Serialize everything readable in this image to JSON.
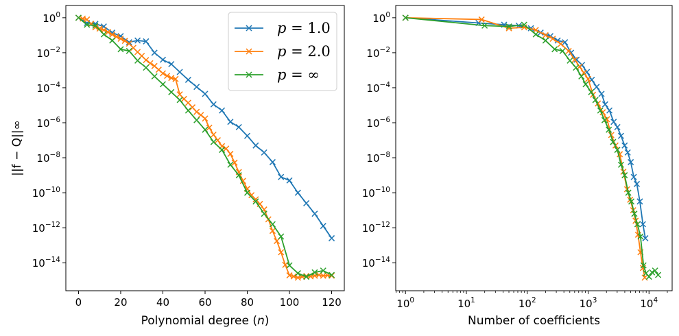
{
  "chart_data": [
    {
      "type": "line",
      "name": "left",
      "xlabel": "Polynomial degree (n)",
      "xlabel_pre": "Polynomial degree (",
      "xlabel_var": "n",
      "xlabel_post": ")",
      "ylabel": "||f − Q||∞",
      "xscale": "linear",
      "yscale": "log",
      "xlim": [
        -6,
        126
      ],
      "ylim_exp": [
        -15.6,
        0.7
      ],
      "xticks": [
        0,
        20,
        40,
        60,
        80,
        100,
        120
      ],
      "xtick_labels": [
        "0",
        "20",
        "40",
        "60",
        "80",
        "100",
        "120"
      ],
      "ytick_exps": [
        0,
        -2,
        -4,
        -6,
        -8,
        -10,
        -12,
        -14
      ],
      "ytick_labels": [
        "0",
        "−2",
        "−4",
        "−6",
        "−8",
        "−10",
        "−12",
        "−14"
      ],
      "ytick_base": "10",
      "legend": {
        "placement": "top-right",
        "entries": [
          {
            "prefix": "p = ",
            "value": "1.0"
          },
          {
            "prefix": "p = ",
            "value": "2.0"
          },
          {
            "prefix": "p = ",
            "value": "∞"
          }
        ]
      },
      "series": [
        {
          "name": "p = 1.0",
          "color": "#1f77b4",
          "x": [
            0,
            4,
            8,
            12,
            16,
            20,
            24,
            28,
            32,
            36,
            40,
            44,
            48,
            52,
            56,
            60,
            64,
            68,
            72,
            76,
            80,
            84,
            88,
            92,
            96,
            100,
            104,
            108,
            112,
            116,
            120
          ],
          "logy": [
            0,
            -0.3,
            -0.35,
            -0.5,
            -0.85,
            -1.05,
            -1.4,
            -1.3,
            -1.35,
            -2.0,
            -2.4,
            -2.65,
            -3.1,
            -3.55,
            -3.95,
            -4.35,
            -4.95,
            -5.3,
            -5.95,
            -6.25,
            -6.75,
            -7.3,
            -7.7,
            -8.25,
            -9.1,
            -9.3,
            -10.0,
            -10.6,
            -11.2,
            -11.9,
            -12.6
          ]
        },
        {
          "name": "p = 2.0",
          "color": "#ff7f0e",
          "x": [
            0,
            2,
            4,
            6,
            8,
            10,
            12,
            14,
            16,
            18,
            20,
            22,
            24,
            26,
            28,
            30,
            32,
            34,
            36,
            38,
            40,
            42,
            44,
            46,
            48,
            50,
            52,
            54,
            56,
            58,
            60,
            62,
            64,
            66,
            68,
            70,
            72,
            74,
            76,
            78,
            80,
            82,
            84,
            86,
            88,
            90,
            92,
            94,
            96,
            98,
            100,
            102,
            104,
            106,
            108,
            110,
            112,
            114,
            116,
            118,
            120
          ],
          "logy": [
            0,
            -0.05,
            -0.1,
            -0.35,
            -0.55,
            -0.62,
            -0.7,
            -0.82,
            -0.96,
            -1.08,
            -1.2,
            -1.32,
            -1.48,
            -1.72,
            -1.96,
            -2.18,
            -2.42,
            -2.6,
            -2.76,
            -2.97,
            -3.18,
            -3.32,
            -3.44,
            -3.5,
            -4.38,
            -4.64,
            -4.86,
            -5.12,
            -5.38,
            -5.56,
            -5.76,
            -6.28,
            -6.68,
            -7.0,
            -7.34,
            -7.48,
            -7.78,
            -8.28,
            -8.82,
            -9.32,
            -9.78,
            -10.14,
            -10.38,
            -10.64,
            -10.96,
            -11.52,
            -12.18,
            -12.76,
            -13.4,
            -14.12,
            -14.72,
            -14.78,
            -14.85,
            -14.8,
            -14.76,
            -14.78,
            -14.74,
            -14.7,
            -14.74,
            -14.72,
            -14.74
          ]
        },
        {
          "name": "p = ∞",
          "color": "#2ca02c",
          "x": [
            0,
            4,
            8,
            12,
            16,
            20,
            24,
            28,
            32,
            36,
            40,
            44,
            48,
            52,
            56,
            60,
            64,
            68,
            72,
            76,
            80,
            84,
            88,
            92,
            96,
            100,
            104,
            108,
            112,
            116,
            120
          ],
          "logy": [
            0,
            -0.4,
            -0.45,
            -0.95,
            -1.3,
            -1.8,
            -1.9,
            -2.45,
            -2.85,
            -3.35,
            -3.8,
            -4.25,
            -4.7,
            -5.3,
            -5.85,
            -6.4,
            -7.1,
            -7.55,
            -8.4,
            -9.0,
            -10.0,
            -10.5,
            -11.2,
            -11.8,
            -12.5,
            -14.15,
            -14.6,
            -14.8,
            -14.55,
            -14.45,
            -14.7
          ]
        }
      ]
    },
    {
      "type": "line",
      "name": "right",
      "xlabel": "Number of coefficients",
      "ylabel": "",
      "xscale": "log",
      "yscale": "log",
      "xlim_exp": [
        -0.16,
        4.38
      ],
      "ylim_exp": [
        -15.6,
        0.7
      ],
      "xtick_exps": [
        0,
        1,
        2,
        3,
        4
      ],
      "xtick_labels": [
        "0",
        "1",
        "2",
        "3",
        "4"
      ],
      "xtick_base": "10",
      "ytick_exps": [
        0,
        -2,
        -4,
        -6,
        -8,
        -10,
        -12,
        -14
      ],
      "ytick_labels": [
        "0",
        "−2",
        "−4",
        "−6",
        "−8",
        "−10",
        "−12",
        "−14"
      ],
      "ytick_base": "10",
      "series": [
        {
          "name": "p = 1.0",
          "color": "#1f77b4",
          "logx": [
            0,
            1.2,
            1.62,
            1.86,
            2.06,
            2.22,
            2.38,
            2.5,
            2.62,
            2.72,
            2.81,
            2.9,
            2.98,
            3.06,
            3.14,
            3.22,
            3.28,
            3.35,
            3.42,
            3.48,
            3.54,
            3.6,
            3.65,
            3.7,
            3.75,
            3.8,
            3.85,
            3.9,
            3.94
          ],
          "logy": [
            0,
            -0.3,
            -0.4,
            -0.45,
            -0.6,
            -0.85,
            -1.05,
            -1.3,
            -1.4,
            -2.0,
            -2.4,
            -2.7,
            -3.1,
            -3.55,
            -3.95,
            -4.35,
            -4.95,
            -5.3,
            -5.95,
            -6.25,
            -6.75,
            -7.3,
            -7.7,
            -8.25,
            -9.1,
            -9.5,
            -10.5,
            -11.8,
            -12.6
          ]
        },
        {
          "name": "p = 2.0",
          "color": "#ff7f0e",
          "logx": [
            0,
            1.25,
            1.7,
            1.95,
            2.14,
            2.3,
            2.42,
            2.55,
            2.68,
            2.78,
            2.86,
            2.93,
            3.0,
            3.08,
            3.16,
            3.24,
            3.31,
            3.38,
            3.45,
            3.52,
            3.58,
            3.64,
            3.69,
            3.74,
            3.78,
            3.82,
            3.86,
            3.9,
            3.93
          ],
          "logy": [
            0,
            -0.1,
            -0.6,
            -0.55,
            -0.7,
            -1.0,
            -1.2,
            -1.5,
            -1.9,
            -2.4,
            -2.8,
            -3.15,
            -3.5,
            -4.4,
            -4.9,
            -5.4,
            -5.8,
            -6.7,
            -7.3,
            -7.8,
            -8.8,
            -9.8,
            -10.4,
            -11.0,
            -11.6,
            -12.4,
            -13.4,
            -14.3,
            -14.85
          ]
        },
        {
          "name": "p = ∞",
          "color": "#2ca02c",
          "logx": [
            0,
            1.3,
            1.7,
            1.95,
            2.14,
            2.3,
            2.45,
            2.58,
            2.7,
            2.8,
            2.89,
            2.96,
            3.05,
            3.12,
            3.2,
            3.27,
            3.34,
            3.41,
            3.48,
            3.54,
            3.6,
            3.66,
            3.71,
            3.76,
            3.81,
            3.86,
            3.91,
            3.95,
            4.0,
            4.05,
            4.1,
            4.15
          ],
          "logy": [
            0,
            -0.45,
            -0.5,
            -0.4,
            -0.95,
            -1.3,
            -1.8,
            -1.9,
            -2.45,
            -2.85,
            -3.35,
            -3.8,
            -4.25,
            -4.7,
            -5.3,
            -5.85,
            -6.4,
            -7.1,
            -7.55,
            -8.4,
            -9.0,
            -10.0,
            -10.5,
            -11.2,
            -11.8,
            -12.5,
            -14.15,
            -14.6,
            -14.8,
            -14.55,
            -14.45,
            -14.7
          ]
        }
      ]
    }
  ]
}
